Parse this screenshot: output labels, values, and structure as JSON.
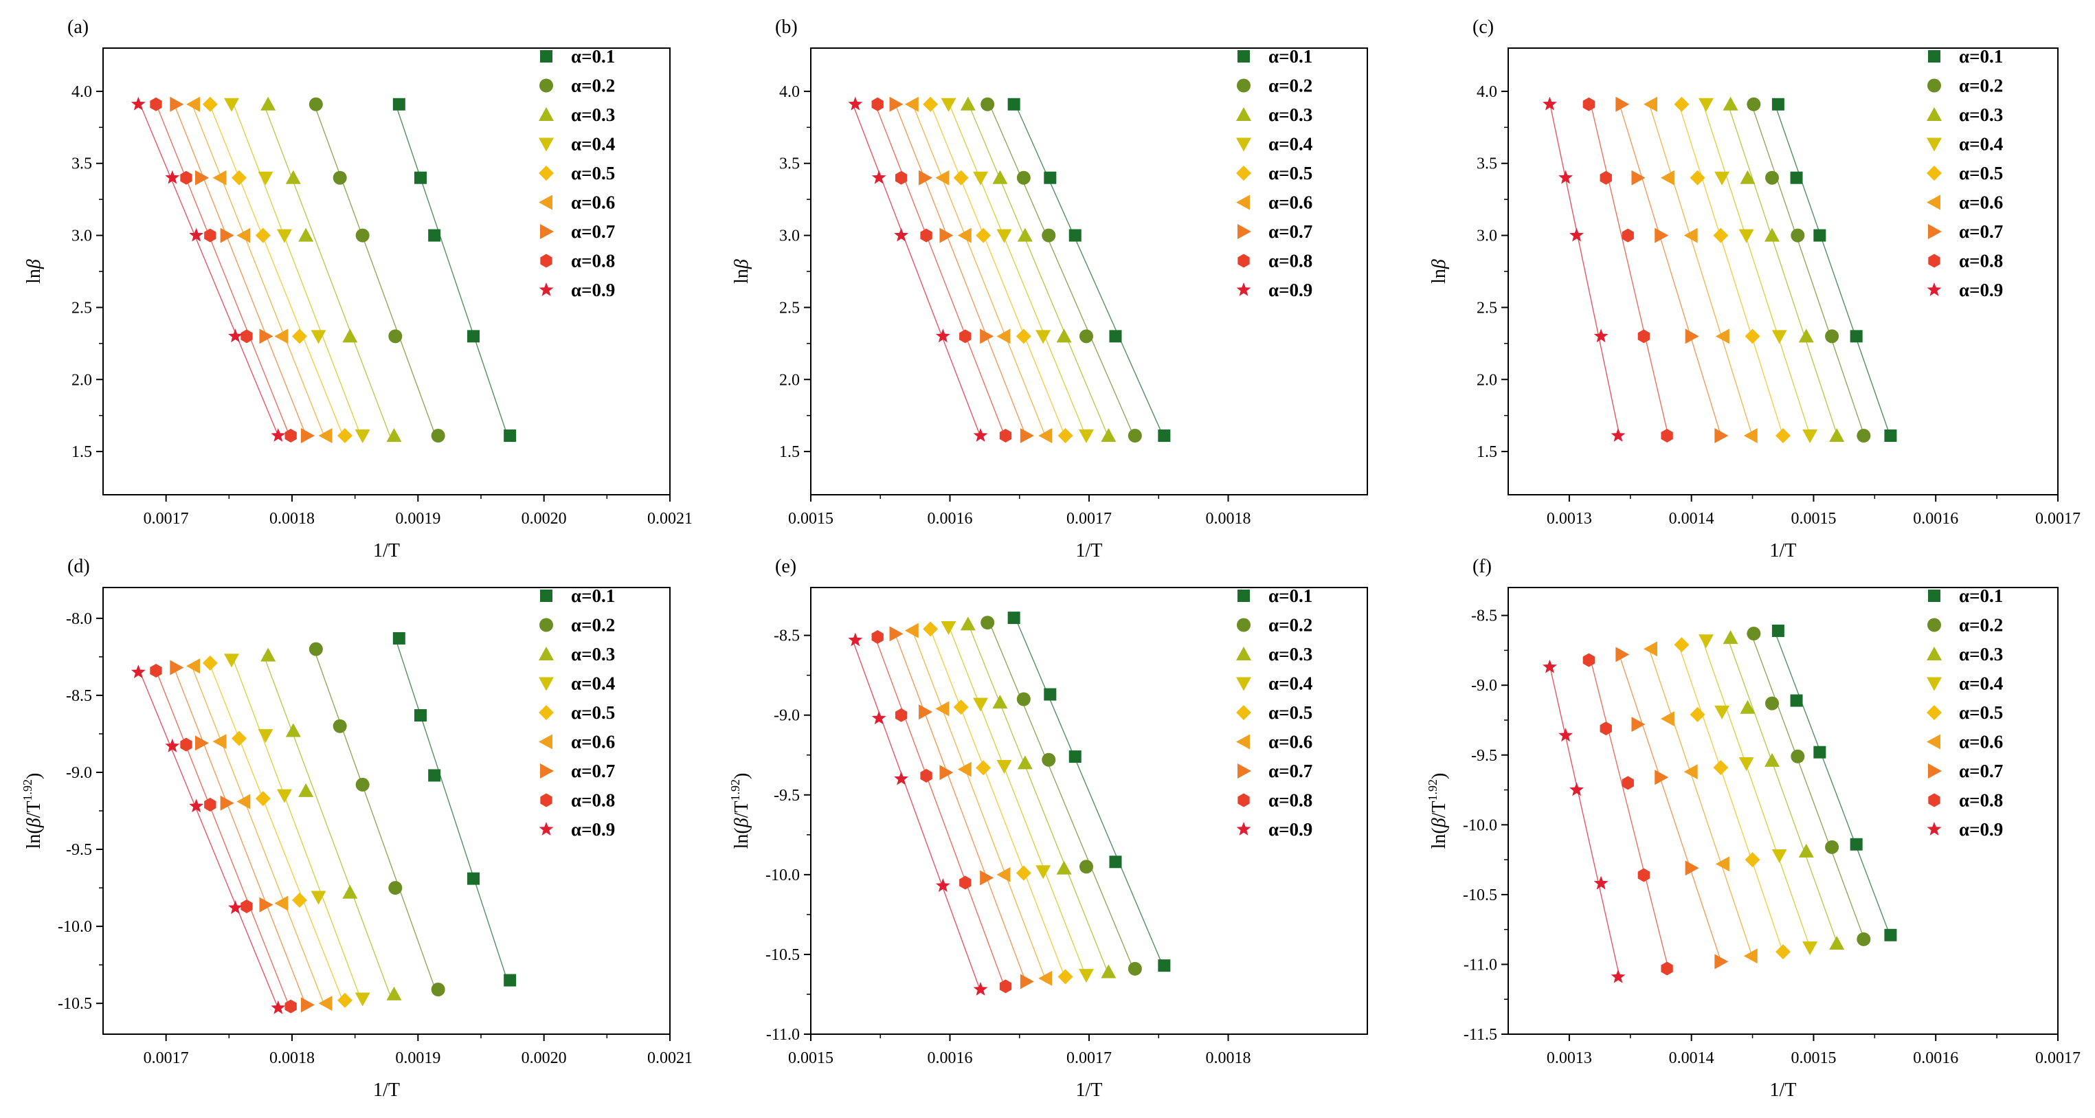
{
  "series_names": [
    "α=0.1",
    "α=0.2",
    "α=0.3",
    "α=0.4",
    "α=0.5",
    "α=0.6",
    "α=0.7",
    "α=0.8",
    "α=0.9"
  ],
  "series_colors": [
    "#1a6e2a",
    "#6b8e23",
    "#a8b816",
    "#d4c20a",
    "#f2bd0e",
    "#f0a01c",
    "#f07a24",
    "#e8402a",
    "#e01e30"
  ],
  "marker_names": [
    "square",
    "circle",
    "triangle-up",
    "triangle-down",
    "diamond",
    "triangle-left",
    "triangle-right",
    "hexagon",
    "star"
  ],
  "chart_data": [
    {
      "panel_label": "(a)",
      "type": "scatter",
      "xlabel": "1/T",
      "ylabel_plain": "lnβ",
      "ylabel_base": "ln",
      "ylabel_greek": "β",
      "ylabel_sup": "",
      "xlim": [
        0.00165,
        0.0021
      ],
      "ylim": [
        1.2,
        4.3
      ],
      "xticks": [
        0.0017,
        0.0018,
        0.0019,
        0.002,
        0.0021
      ],
      "xtick_labels": [
        "0.0017",
        "0.0018",
        "0.0019",
        "0.0020",
        "0.0021"
      ],
      "yticks": [
        1.5,
        2.0,
        2.5,
        3.0,
        3.5,
        4.0
      ],
      "ytick_labels": [
        "1.5",
        "2.0",
        "2.5",
        "3.0",
        "3.5",
        "4.0"
      ],
      "y": [
        3.91,
        3.4,
        3.0,
        2.3,
        1.61
      ],
      "series": [
        {
          "name": "α=0.1",
          "x": [
            0.001885,
            0.001902,
            0.001913,
            0.001944,
            0.001973
          ]
        },
        {
          "name": "α=0.2",
          "x": [
            0.001819,
            0.001838,
            0.001856,
            0.001882,
            0.001916
          ]
        },
        {
          "name": "α=0.3",
          "x": [
            0.001781,
            0.001801,
            0.001811,
            0.001846,
            0.001881
          ]
        },
        {
          "name": "α=0.4",
          "x": [
            0.001752,
            0.001779,
            0.001794,
            0.001821,
            0.001856
          ]
        },
        {
          "name": "α=0.5",
          "x": [
            0.001735,
            0.001758,
            0.001777,
            0.001806,
            0.001842
          ]
        },
        {
          "name": "α=0.6",
          "x": [
            0.001722,
            0.001743,
            0.001762,
            0.001792,
            0.001827
          ]
        },
        {
          "name": "α=0.7",
          "x": [
            0.001708,
            0.001728,
            0.001748,
            0.001779,
            0.001812
          ]
        },
        {
          "name": "α=0.8",
          "x": [
            0.001692,
            0.001716,
            0.001735,
            0.001764,
            0.001799
          ]
        },
        {
          "name": "α=0.9",
          "x": [
            0.001678,
            0.001705,
            0.001724,
            0.001755,
            0.001789
          ]
        }
      ]
    },
    {
      "panel_label": "(b)",
      "type": "scatter",
      "xlabel": "1/T",
      "ylabel_plain": "lnβ",
      "ylabel_base": "ln",
      "ylabel_greek": "β",
      "ylabel_sup": "",
      "xlim": [
        0.0015,
        0.0019
      ],
      "ylim": [
        1.2,
        4.3
      ],
      "xticks": [
        0.0015,
        0.0016,
        0.0017,
        0.0018
      ],
      "xtick_labels": [
        "0.0015",
        "0.0016",
        "0.0017",
        "0.0018"
      ],
      "yticks": [
        1.5,
        2.0,
        2.5,
        3.0,
        3.5,
        4.0
      ],
      "ytick_labels": [
        "1.5",
        "2.0",
        "2.5",
        "3.0",
        "3.5",
        "4.0"
      ],
      "y": [
        3.91,
        3.4,
        3.0,
        2.3,
        1.61
      ],
      "series": [
        {
          "name": "α=0.1",
          "x": [
            0.001646,
            0.001672,
            0.00169,
            0.001719,
            0.001754
          ]
        },
        {
          "name": "α=0.2",
          "x": [
            0.001627,
            0.001653,
            0.001671,
            0.001698,
            0.001733
          ]
        },
        {
          "name": "α=0.3",
          "x": [
            0.001613,
            0.001636,
            0.001654,
            0.001682,
            0.001714
          ]
        },
        {
          "name": "α=0.4",
          "x": [
            0.001599,
            0.001622,
            0.001639,
            0.001667,
            0.001698
          ]
        },
        {
          "name": "α=0.5",
          "x": [
            0.001586,
            0.001608,
            0.001624,
            0.001653,
            0.001683
          ]
        },
        {
          "name": "α=0.6",
          "x": [
            0.001573,
            0.001595,
            0.001611,
            0.001639,
            0.001669
          ]
        },
        {
          "name": "α=0.7",
          "x": [
            0.001561,
            0.001582,
            0.001597,
            0.001626,
            0.001655
          ]
        },
        {
          "name": "α=0.8",
          "x": [
            0.001548,
            0.001565,
            0.001583,
            0.001611,
            0.00164
          ]
        },
        {
          "name": "α=0.9",
          "x": [
            0.001532,
            0.001549,
            0.001565,
            0.001595,
            0.001622
          ]
        }
      ]
    },
    {
      "panel_label": "(c)",
      "type": "scatter",
      "xlabel": "1/T",
      "ylabel_plain": "lnβ",
      "ylabel_base": "ln",
      "ylabel_greek": "β",
      "ylabel_sup": "",
      "xlim": [
        0.00125,
        0.0017
      ],
      "ylim": [
        1.2,
        4.3
      ],
      "xticks": [
        0.0013,
        0.0014,
        0.0015,
        0.0016,
        0.0017
      ],
      "xtick_labels": [
        "0.0013",
        "0.0014",
        "0.0015",
        "0.0016",
        "0.0017"
      ],
      "yticks": [
        1.5,
        2.0,
        2.5,
        3.0,
        3.5,
        4.0
      ],
      "ytick_labels": [
        "1.5",
        "2.0",
        "2.5",
        "3.0",
        "3.5",
        "4.0"
      ],
      "y": [
        3.91,
        3.4,
        3.0,
        2.3,
        1.61
      ],
      "series": [
        {
          "name": "α=0.1",
          "x": [
            0.001471,
            0.001486,
            0.001505,
            0.001535,
            0.001563
          ]
        },
        {
          "name": "α=0.2",
          "x": [
            0.001451,
            0.001466,
            0.001487,
            0.001515,
            0.001541
          ]
        },
        {
          "name": "α=0.3",
          "x": [
            0.001432,
            0.001446,
            0.001466,
            0.001494,
            0.001519
          ]
        },
        {
          "name": "α=0.4",
          "x": [
            0.001412,
            0.001425,
            0.001445,
            0.001472,
            0.001497
          ]
        },
        {
          "name": "α=0.5",
          "x": [
            0.001392,
            0.001405,
            0.001424,
            0.00145,
            0.001475
          ]
        },
        {
          "name": "α=0.6",
          "x": [
            0.001367,
            0.001381,
            0.0014,
            0.001426,
            0.001449
          ]
        },
        {
          "name": "α=0.7",
          "x": [
            0.001343,
            0.001356,
            0.001375,
            0.0014,
            0.001424
          ]
        },
        {
          "name": "α=0.8",
          "x": [
            0.001316,
            0.00133,
            0.001348,
            0.001361,
            0.00138
          ]
        },
        {
          "name": "α=0.9",
          "x": [
            0.001284,
            0.001297,
            0.001306,
            0.001326,
            0.00134
          ]
        }
      ]
    },
    {
      "panel_label": "(d)",
      "type": "scatter",
      "xlabel": "1/T",
      "ylabel_plain": "ln(β/T1.92)",
      "ylabel_base": "ln(",
      "ylabel_greek": "β",
      "ylabel_mid": "/T",
      "ylabel_sup": "1.92",
      "ylabel_end": ")",
      "xlim": [
        0.00165,
        0.0021
      ],
      "ylim": [
        -10.7,
        -7.8
      ],
      "xticks": [
        0.0017,
        0.0018,
        0.0019,
        0.002,
        0.0021
      ],
      "xtick_labels": [
        "0.0017",
        "0.0018",
        "0.0019",
        "0.0020",
        "0.0021"
      ],
      "yticks": [
        -10.5,
        -10.0,
        -9.5,
        -9.0,
        -8.5,
        -8.0
      ],
      "ytick_labels": [
        "-10.5",
        "-10.0",
        "-9.5",
        "-9.0",
        "-8.5",
        "-8.0"
      ],
      "series": [
        {
          "name": "α=0.1",
          "x": [
            0.001885,
            0.001902,
            0.001913,
            0.001944,
            0.001973
          ],
          "y": [
            -8.13,
            -8.63,
            -9.02,
            -9.69,
            -10.35
          ]
        },
        {
          "name": "α=0.2",
          "x": [
            0.001819,
            0.001838,
            0.001856,
            0.001882,
            0.001916
          ],
          "y": [
            -8.2,
            -8.7,
            -9.08,
            -9.75,
            -10.41
          ]
        },
        {
          "name": "α=0.3",
          "x": [
            0.001781,
            0.001801,
            0.001811,
            0.001846,
            0.001881
          ],
          "y": [
            -8.24,
            -8.73,
            -9.12,
            -9.78,
            -10.44
          ]
        },
        {
          "name": "α=0.4",
          "x": [
            0.001752,
            0.001779,
            0.001794,
            0.001821,
            0.001856
          ],
          "y": [
            -8.27,
            -8.76,
            -9.15,
            -9.81,
            -10.47
          ]
        },
        {
          "name": "α=0.5",
          "x": [
            0.001735,
            0.001758,
            0.001777,
            0.001806,
            0.001842
          ],
          "y": [
            -8.29,
            -8.78,
            -9.17,
            -9.83,
            -10.48
          ]
        },
        {
          "name": "α=0.6",
          "x": [
            0.001722,
            0.001743,
            0.001762,
            0.001792,
            0.001827
          ],
          "y": [
            -8.31,
            -8.8,
            -9.19,
            -9.85,
            -10.5
          ]
        },
        {
          "name": "α=0.7",
          "x": [
            0.001708,
            0.001728,
            0.001748,
            0.001779,
            0.001812
          ],
          "y": [
            -8.32,
            -8.81,
            -9.2,
            -9.86,
            -10.51
          ]
        },
        {
          "name": "α=0.8",
          "x": [
            0.001692,
            0.001716,
            0.001735,
            0.001764,
            0.001799
          ],
          "y": [
            -8.34,
            -8.82,
            -9.21,
            -9.87,
            -10.52
          ]
        },
        {
          "name": "α=0.9",
          "x": [
            0.001678,
            0.001705,
            0.001724,
            0.001755,
            0.001789
          ],
          "y": [
            -8.35,
            -8.83,
            -9.22,
            -9.88,
            -10.53
          ]
        }
      ]
    },
    {
      "panel_label": "(e)",
      "type": "scatter",
      "xlabel": "1/T",
      "ylabel_plain": "ln(β/T1.92)",
      "ylabel_base": "ln(",
      "ylabel_greek": "β",
      "ylabel_mid": "/T",
      "ylabel_sup": "1.92",
      "ylabel_end": ")",
      "xlim": [
        0.0015,
        0.0019
      ],
      "ylim": [
        -11.0,
        -8.2
      ],
      "xticks": [
        0.0015,
        0.0016,
        0.0017,
        0.0018
      ],
      "xtick_labels": [
        "0.0015",
        "0.0016",
        "0.0017",
        "0.0018"
      ],
      "yticks": [
        -11.0,
        -10.5,
        -10.0,
        -9.5,
        -9.0,
        -8.5
      ],
      "ytick_labels": [
        "-11.0",
        "-10.5",
        "-10.0",
        "-9.5",
        "-9.0",
        "-8.5"
      ],
      "series": [
        {
          "name": "α=0.1",
          "x": [
            0.001646,
            0.001672,
            0.00169,
            0.001719,
            0.001754
          ],
          "y": [
            -8.39,
            -8.87,
            -9.26,
            -9.92,
            -10.57
          ]
        },
        {
          "name": "α=0.2",
          "x": [
            0.001627,
            0.001653,
            0.001671,
            0.001698,
            0.001733
          ],
          "y": [
            -8.42,
            -8.9,
            -9.28,
            -9.95,
            -10.59
          ]
        },
        {
          "name": "α=0.3",
          "x": [
            0.001613,
            0.001636,
            0.001654,
            0.001682,
            0.001714
          ],
          "y": [
            -8.43,
            -8.92,
            -9.3,
            -9.96,
            -10.61
          ]
        },
        {
          "name": "α=0.4",
          "x": [
            0.001599,
            0.001622,
            0.001639,
            0.001667,
            0.001698
          ],
          "y": [
            -8.45,
            -8.93,
            -9.32,
            -9.98,
            -10.63
          ]
        },
        {
          "name": "α=0.5",
          "x": [
            0.001586,
            0.001608,
            0.001624,
            0.001653,
            0.001683
          ],
          "y": [
            -8.46,
            -8.95,
            -9.33,
            -9.99,
            -10.64
          ]
        },
        {
          "name": "α=0.6",
          "x": [
            0.001573,
            0.001595,
            0.001611,
            0.001639,
            0.001669
          ],
          "y": [
            -8.47,
            -8.96,
            -9.34,
            -10.0,
            -10.65
          ]
        },
        {
          "name": "α=0.7",
          "x": [
            0.001561,
            0.001582,
            0.001597,
            0.001626,
            0.001655
          ],
          "y": [
            -8.49,
            -8.98,
            -9.36,
            -10.02,
            -10.67
          ]
        },
        {
          "name": "α=0.8",
          "x": [
            0.001548,
            0.001565,
            0.001583,
            0.001611,
            0.00164
          ],
          "y": [
            -8.51,
            -9.0,
            -9.38,
            -10.05,
            -10.7
          ]
        },
        {
          "name": "α=0.9",
          "x": [
            0.001532,
            0.001549,
            0.001565,
            0.001595,
            0.001622
          ],
          "y": [
            -8.53,
            -9.02,
            -9.4,
            -10.07,
            -10.72
          ]
        }
      ]
    },
    {
      "panel_label": "(f)",
      "type": "scatter",
      "xlabel": "1/T",
      "ylabel_plain": "ln(β/T1.92)",
      "ylabel_base": "ln(",
      "ylabel_greek": "β",
      "ylabel_mid": "/T",
      "ylabel_sup": "1.92",
      "ylabel_end": ")",
      "xlim": [
        0.00125,
        0.0017
      ],
      "ylim": [
        -11.5,
        -8.3
      ],
      "xticks": [
        0.0013,
        0.0014,
        0.0015,
        0.0016,
        0.0017
      ],
      "xtick_labels": [
        "0.0013",
        "0.0014",
        "0.0015",
        "0.0016",
        "0.0017"
      ],
      "yticks": [
        -11.5,
        -11.0,
        -10.5,
        -10.0,
        -9.5,
        -9.0,
        -8.5
      ],
      "ytick_labels": [
        "-11.5",
        "-11.0",
        "-10.5",
        "-10.0",
        "-9.5",
        "-9.0",
        "-8.5"
      ],
      "series": [
        {
          "name": "α=0.1",
          "x": [
            0.001471,
            0.001486,
            0.001505,
            0.001535,
            0.001563
          ],
          "y": [
            -8.61,
            -9.11,
            -9.48,
            -10.14,
            -10.79
          ]
        },
        {
          "name": "α=0.2",
          "x": [
            0.001451,
            0.001466,
            0.001487,
            0.001515,
            0.001541
          ],
          "y": [
            -8.63,
            -9.13,
            -9.51,
            -10.16,
            -10.82
          ]
        },
        {
          "name": "α=0.3",
          "x": [
            0.001432,
            0.001446,
            0.001466,
            0.001494,
            0.001519
          ],
          "y": [
            -8.66,
            -9.16,
            -9.54,
            -10.19,
            -10.85
          ]
        },
        {
          "name": "α=0.4",
          "x": [
            0.001412,
            0.001425,
            0.001445,
            0.001472,
            0.001497
          ],
          "y": [
            -8.68,
            -9.19,
            -9.56,
            -10.22,
            -10.88
          ]
        },
        {
          "name": "α=0.5",
          "x": [
            0.001392,
            0.001405,
            0.001424,
            0.00145,
            0.001475
          ],
          "y": [
            -8.71,
            -9.21,
            -9.59,
            -10.25,
            -10.91
          ]
        },
        {
          "name": "α=0.6",
          "x": [
            0.001367,
            0.001381,
            0.0014,
            0.001426,
            0.001449
          ],
          "y": [
            -8.74,
            -9.24,
            -9.62,
            -10.28,
            -10.94
          ]
        },
        {
          "name": "α=0.7",
          "x": [
            0.001343,
            0.001356,
            0.001375,
            0.0014,
            0.001424
          ],
          "y": [
            -8.78,
            -9.28,
            -9.66,
            -10.31,
            -10.98
          ]
        },
        {
          "name": "α=0.8",
          "x": [
            0.001316,
            0.00133,
            0.001348,
            0.001361,
            0.00138
          ],
          "y": [
            -8.82,
            -9.31,
            -9.7,
            -10.36,
            -11.03
          ]
        },
        {
          "name": "α=0.9",
          "x": [
            0.001284,
            0.001297,
            0.001306,
            0.001326,
            0.00134
          ],
          "y": [
            -8.87,
            -9.36,
            -9.75,
            -10.42,
            -11.09
          ]
        }
      ]
    }
  ]
}
